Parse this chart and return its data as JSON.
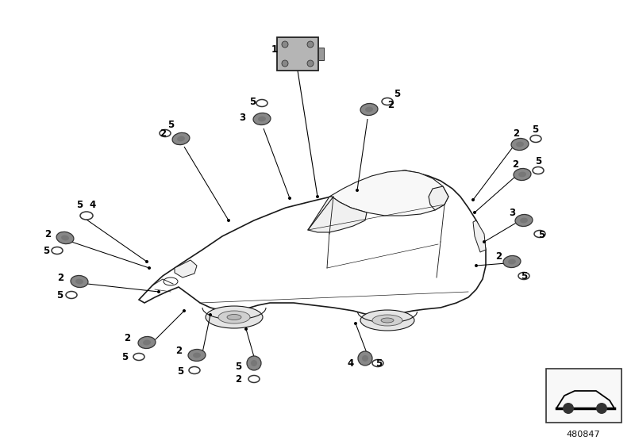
{
  "bg_color": "#ffffff",
  "fig_width": 8.0,
  "fig_height": 5.6,
  "dpi": 100,
  "part_number": "480847",
  "car_fill": "#ffffff",
  "car_edge": "#1a1a1a",
  "sensor_fill": "#888888",
  "sensor_edge": "#333333",
  "ring_edge": "#333333",
  "line_color": "#000000",
  "module_fill": "#aaaaaa",
  "module_edge": "#222222",
  "legend_box_fill": "#ffffff",
  "legend_box_edge": "#333333",
  "text_color": "#000000",
  "label_fontsize": 8.5,
  "lw_car": 1.2,
  "lw_detail": 0.8,
  "lw_sensor_line": 0.75
}
